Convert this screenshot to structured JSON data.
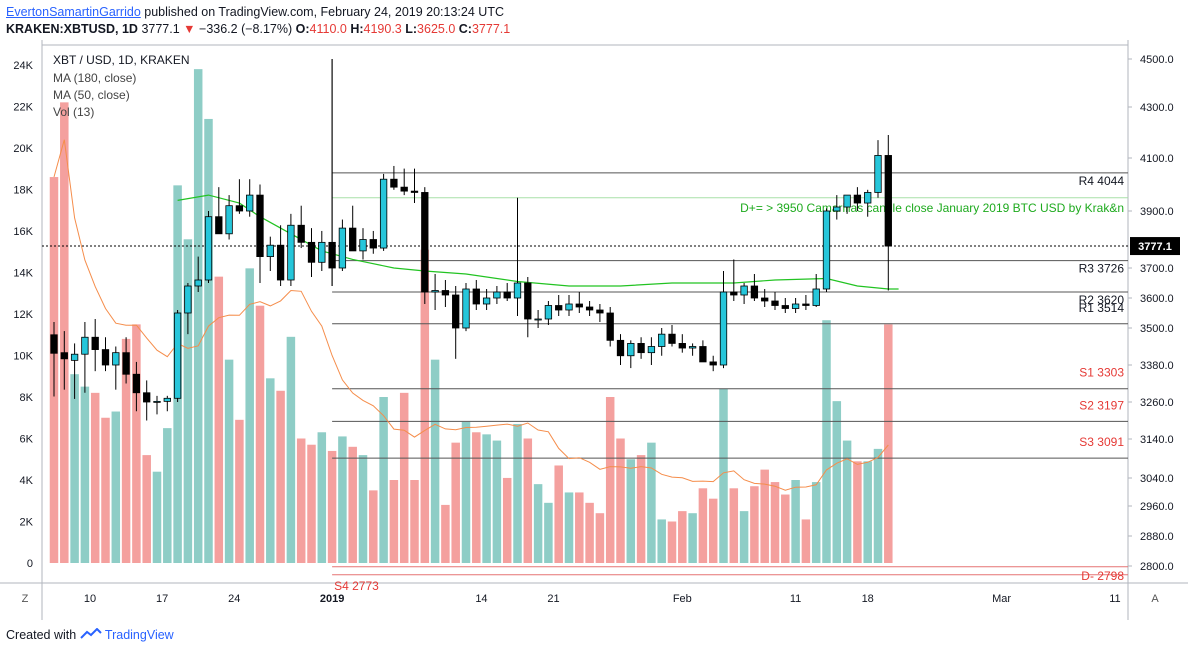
{
  "header": {
    "author": "EvertonSamartinGarrido",
    "published_text": "published on TradingView.com, February 24, 2019 20:13:24 UTC",
    "symbol": "KRAKEN:XBTUSD, 1D",
    "last": "3777.1",
    "down_arrow": "▼",
    "change": "−336.2 (−8.17%)",
    "o_label": "O:",
    "o_value": "4110.0",
    "h_label": "H:",
    "h_value": "4190.3",
    "l_label": "L:",
    "l_value": "3625.0",
    "c_label": "C:",
    "c_value": "3777.1"
  },
  "footer": {
    "created_with": "Created with",
    "brand": "TradingView"
  },
  "colors": {
    "up_body": "#26c6da",
    "down_body": "#000000",
    "vol_up": "#8ecdc6",
    "vol_down": "#f4a09e",
    "ma50": "#22c322",
    "ma13": "#f58d4b",
    "red_text": "#e53935",
    "green_text": "#1eaa1e"
  },
  "chart_data": {
    "type": "candlestick",
    "title": "XBT / USD, 1D, KRAKEN",
    "legend": [
      "MA (180, close)",
      "MA (50, close)",
      "Vol (13)"
    ],
    "price_axis": {
      "ticks": [
        4500,
        4300,
        4100,
        3900,
        3700,
        3600,
        3500,
        3380,
        3260,
        3140,
        3040,
        2960,
        2880,
        2800
      ],
      "labels": [
        "4500.0",
        "4300.0",
        "4100.0",
        "3900.0",
        "3700.0",
        "3600.0",
        "3500.0",
        "3380.0",
        "3260.0",
        "3140.0",
        "3040.0",
        "2960.0",
        "2880.0",
        "2800.0"
      ]
    },
    "volume_axis": {
      "labels": [
        "24K",
        "22K",
        "20K",
        "18K",
        "16K",
        "14K",
        "12K",
        "10K",
        "8K",
        "6K",
        "4K",
        "2K",
        "0"
      ],
      "values": [
        24000,
        22000,
        20000,
        18000,
        16000,
        14000,
        12000,
        10000,
        8000,
        6000,
        4000,
        2000,
        0
      ]
    },
    "time_axis": {
      "labels": [
        "10",
        "17",
        "24",
        "2019",
        "14",
        "21",
        "Feb",
        "11",
        "18",
        "Mar",
        "11"
      ]
    },
    "last_price": "3777.1",
    "candles": [
      {
        "o": 3478,
        "h": 3520,
        "l": 3278,
        "c": 3418,
        "v": 18600
      },
      {
        "o": 3420,
        "h": 3490,
        "l": 3300,
        "c": 3400,
        "v": 22200
      },
      {
        "o": 3395,
        "h": 3450,
        "l": 3270,
        "c": 3415,
        "v": 9100
      },
      {
        "o": 3415,
        "h": 3520,
        "l": 3290,
        "c": 3470,
        "v": 8500
      },
      {
        "o": 3470,
        "h": 3530,
        "l": 3360,
        "c": 3430,
        "v": 8200
      },
      {
        "o": 3430,
        "h": 3470,
        "l": 3360,
        "c": 3380,
        "v": 7000
      },
      {
        "o": 3380,
        "h": 3440,
        "l": 3300,
        "c": 3420,
        "v": 7300
      },
      {
        "o": 3420,
        "h": 3470,
        "l": 3320,
        "c": 3350,
        "v": 10800
      },
      {
        "o": 3350,
        "h": 3390,
        "l": 3230,
        "c": 3290,
        "v": 11500
      },
      {
        "o": 3290,
        "h": 3330,
        "l": 3200,
        "c": 3260,
        "v": 5200
      },
      {
        "o": 3260,
        "h": 3280,
        "l": 3220,
        "c": 3262,
        "v": 4400
      },
      {
        "o": 3262,
        "h": 3280,
        "l": 3230,
        "c": 3272,
        "v": 6500
      },
      {
        "o": 3272,
        "h": 3560,
        "l": 3260,
        "c": 3550,
        "v": 18200
      },
      {
        "o": 3550,
        "h": 3650,
        "l": 3480,
        "c": 3640,
        "v": 15600
      },
      {
        "o": 3640,
        "h": 3740,
        "l": 3620,
        "c": 3660,
        "v": 23800
      },
      {
        "o": 3660,
        "h": 3900,
        "l": 3650,
        "c": 3880,
        "v": 21400
      },
      {
        "o": 3880,
        "h": 3990,
        "l": 3820,
        "c": 3820,
        "v": 13800
      },
      {
        "o": 3820,
        "h": 3960,
        "l": 3800,
        "c": 3920,
        "v": 9800
      },
      {
        "o": 3920,
        "h": 4020,
        "l": 3890,
        "c": 3900,
        "v": 6900
      },
      {
        "o": 3900,
        "h": 4020,
        "l": 3880,
        "c": 3960,
        "v": 14200
      },
      {
        "o": 3960,
        "h": 4000,
        "l": 3650,
        "c": 3740,
        "v": 12400
      },
      {
        "o": 3740,
        "h": 3810,
        "l": 3690,
        "c": 3780,
        "v": 8900
      },
      {
        "o": 3780,
        "h": 3850,
        "l": 3640,
        "c": 3660,
        "v": 8300
      },
      {
        "o": 3660,
        "h": 3890,
        "l": 3640,
        "c": 3850,
        "v": 10900
      },
      {
        "o": 3850,
        "h": 3920,
        "l": 3770,
        "c": 3790,
        "v": 6000
      },
      {
        "o": 3790,
        "h": 3840,
        "l": 3670,
        "c": 3720,
        "v": 5700
      },
      {
        "o": 3720,
        "h": 3830,
        "l": 3690,
        "c": 3790,
        "v": 6300
      },
      {
        "o": 3790,
        "h": 4500,
        "l": 3640,
        "c": 3700,
        "v": 5400
      },
      {
        "o": 3700,
        "h": 3870,
        "l": 3690,
        "c": 3840,
        "v": 6100
      },
      {
        "o": 3840,
        "h": 3920,
        "l": 3760,
        "c": 3760,
        "v": 5600
      },
      {
        "o": 3760,
        "h": 3840,
        "l": 3730,
        "c": 3800,
        "v": 5200
      },
      {
        "o": 3800,
        "h": 3830,
        "l": 3750,
        "c": 3770,
        "v": 3500
      },
      {
        "o": 3770,
        "h": 4040,
        "l": 3760,
        "c": 4020,
        "v": 8000
      },
      {
        "o": 4020,
        "h": 4070,
        "l": 3980,
        "c": 3990,
        "v": 4000
      },
      {
        "o": 3990,
        "h": 4060,
        "l": 3960,
        "c": 3975,
        "v": 8200
      },
      {
        "o": 3975,
        "h": 4060,
        "l": 3930,
        "c": 3970,
        "v": 4000
      },
      {
        "o": 3970,
        "h": 3990,
        "l": 3580,
        "c": 3620,
        "v": 15100
      },
      {
        "o": 3620,
        "h": 3680,
        "l": 3560,
        "c": 3625,
        "v": 9800
      },
      {
        "o": 3625,
        "h": 3660,
        "l": 3570,
        "c": 3610,
        "v": 2800
      },
      {
        "o": 3610,
        "h": 3640,
        "l": 3400,
        "c": 3500,
        "v": 5800
      },
      {
        "o": 3500,
        "h": 3650,
        "l": 3490,
        "c": 3630,
        "v": 6800
      },
      {
        "o": 3630,
        "h": 3660,
        "l": 3560,
        "c": 3580,
        "v": 6300
      },
      {
        "o": 3580,
        "h": 3630,
        "l": 3560,
        "c": 3600,
        "v": 6200
      },
      {
        "o": 3600,
        "h": 3640,
        "l": 3580,
        "c": 3620,
        "v": 5900
      },
      {
        "o": 3620,
        "h": 3650,
        "l": 3590,
        "c": 3600,
        "v": 4100
      },
      {
        "o": 3600,
        "h": 3950,
        "l": 3540,
        "c": 3650,
        "v": 6700
      },
      {
        "o": 3650,
        "h": 3670,
        "l": 3470,
        "c": 3530,
        "v": 6000
      },
      {
        "o": 3530,
        "h": 3560,
        "l": 3500,
        "c": 3530,
        "v": 3800
      },
      {
        "o": 3530,
        "h": 3590,
        "l": 3510,
        "c": 3575,
        "v": 2900
      },
      {
        "o": 3575,
        "h": 3610,
        "l": 3540,
        "c": 3560,
        "v": 4700
      },
      {
        "o": 3560,
        "h": 3610,
        "l": 3540,
        "c": 3580,
        "v": 3400
      },
      {
        "o": 3580,
        "h": 3620,
        "l": 3550,
        "c": 3570,
        "v": 3400
      },
      {
        "o": 3570,
        "h": 3590,
        "l": 3540,
        "c": 3560,
        "v": 2900
      },
      {
        "o": 3560,
        "h": 3580,
        "l": 3520,
        "c": 3550,
        "v": 2400
      },
      {
        "o": 3550,
        "h": 3570,
        "l": 3440,
        "c": 3460,
        "v": 8000
      },
      {
        "o": 3460,
        "h": 3480,
        "l": 3380,
        "c": 3410,
        "v": 6000
      },
      {
        "o": 3410,
        "h": 3460,
        "l": 3370,
        "c": 3450,
        "v": 5000
      },
      {
        "o": 3450,
        "h": 3470,
        "l": 3400,
        "c": 3420,
        "v": 5200
      },
      {
        "o": 3420,
        "h": 3470,
        "l": 3380,
        "c": 3440,
        "v": 5800
      },
      {
        "o": 3440,
        "h": 3500,
        "l": 3410,
        "c": 3480,
        "v": 2100
      },
      {
        "o": 3480,
        "h": 3510,
        "l": 3440,
        "c": 3450,
        "v": 2000
      },
      {
        "o": 3450,
        "h": 3480,
        "l": 3420,
        "c": 3435,
        "v": 2500
      },
      {
        "o": 3435,
        "h": 3450,
        "l": 3410,
        "c": 3440,
        "v": 2400
      },
      {
        "o": 3440,
        "h": 3460,
        "l": 3390,
        "c": 3390,
        "v": 3600
      },
      {
        "o": 3390,
        "h": 3410,
        "l": 3360,
        "c": 3380,
        "v": 3100
      },
      {
        "o": 3380,
        "h": 3690,
        "l": 3370,
        "c": 3620,
        "v": 8400
      },
      {
        "o": 3620,
        "h": 3730,
        "l": 3590,
        "c": 3610,
        "v": 3600
      },
      {
        "o": 3610,
        "h": 3650,
        "l": 3580,
        "c": 3640,
        "v": 2500
      },
      {
        "o": 3640,
        "h": 3680,
        "l": 3590,
        "c": 3600,
        "v": 3700
      },
      {
        "o": 3600,
        "h": 3630,
        "l": 3570,
        "c": 3590,
        "v": 4500
      },
      {
        "o": 3590,
        "h": 3620,
        "l": 3560,
        "c": 3575,
        "v": 3900
      },
      {
        "o": 3575,
        "h": 3600,
        "l": 3550,
        "c": 3565,
        "v": 3300
      },
      {
        "o": 3565,
        "h": 3600,
        "l": 3550,
        "c": 3580,
        "v": 4000
      },
      {
        "o": 3580,
        "h": 3610,
        "l": 3560,
        "c": 3575,
        "v": 2100
      },
      {
        "o": 3575,
        "h": 3680,
        "l": 3570,
        "c": 3630,
        "v": 3900
      },
      {
        "o": 3630,
        "h": 3910,
        "l": 3620,
        "c": 3900,
        "v": 11700
      },
      {
        "o": 3900,
        "h": 3960,
        "l": 3870,
        "c": 3915,
        "v": 7800
      },
      {
        "o": 3915,
        "h": 3960,
        "l": 3890,
        "c": 3960,
        "v": 5900
      },
      {
        "o": 3960,
        "h": 3990,
        "l": 3900,
        "c": 3930,
        "v": 4900
      },
      {
        "o": 3930,
        "h": 3980,
        "l": 3880,
        "c": 3970,
        "v": 4900
      },
      {
        "o": 3970,
        "h": 4170,
        "l": 3950,
        "c": 4110,
        "v": 5500
      },
      {
        "o": 4110,
        "h": 4190,
        "l": 3625,
        "c": 3777,
        "v": 11500
      }
    ],
    "ma50": [
      [
        12,
        3940
      ],
      [
        15,
        3960
      ],
      [
        18,
        3930
      ],
      [
        20,
        3880
      ],
      [
        23,
        3820
      ],
      [
        26,
        3760
      ],
      [
        29,
        3730
      ],
      [
        33,
        3700
      ],
      [
        36,
        3690
      ],
      [
        40,
        3680
      ],
      [
        45,
        3655
      ],
      [
        50,
        3640
      ],
      [
        55,
        3640
      ],
      [
        60,
        3650
      ],
      [
        66,
        3650
      ],
      [
        70,
        3660
      ],
      [
        75,
        3665
      ],
      [
        78,
        3640
      ],
      [
        81,
        3630
      ],
      [
        82,
        3630
      ]
    ],
    "camarilla": {
      "note": "D+=    >    3950      Camarillas candle close January  2019 BTC USD   by Krak&n",
      "levels": [
        {
          "label": "R4  4044",
          "price": 4044,
          "color": "#131722"
        },
        {
          "label": "R3 3726",
          "price": 3726,
          "color": "#131722"
        },
        {
          "label": "R2 3620",
          "price": 3620,
          "color": "#131722"
        },
        {
          "label": "R1    3514",
          "price": 3514,
          "color": "#131722"
        },
        {
          "label": "S1 3303",
          "price": 3303,
          "color": "#e53935"
        },
        {
          "label": "S2    3197",
          "price": 3197,
          "color": "#e53935"
        },
        {
          "label": "S3    3091",
          "price": 3091,
          "color": "#e53935"
        }
      ],
      "d_plus": 3950,
      "d_minus_label": "D-    2798",
      "d_minus_price": 2798,
      "s4_label": "S4 2773"
    }
  }
}
